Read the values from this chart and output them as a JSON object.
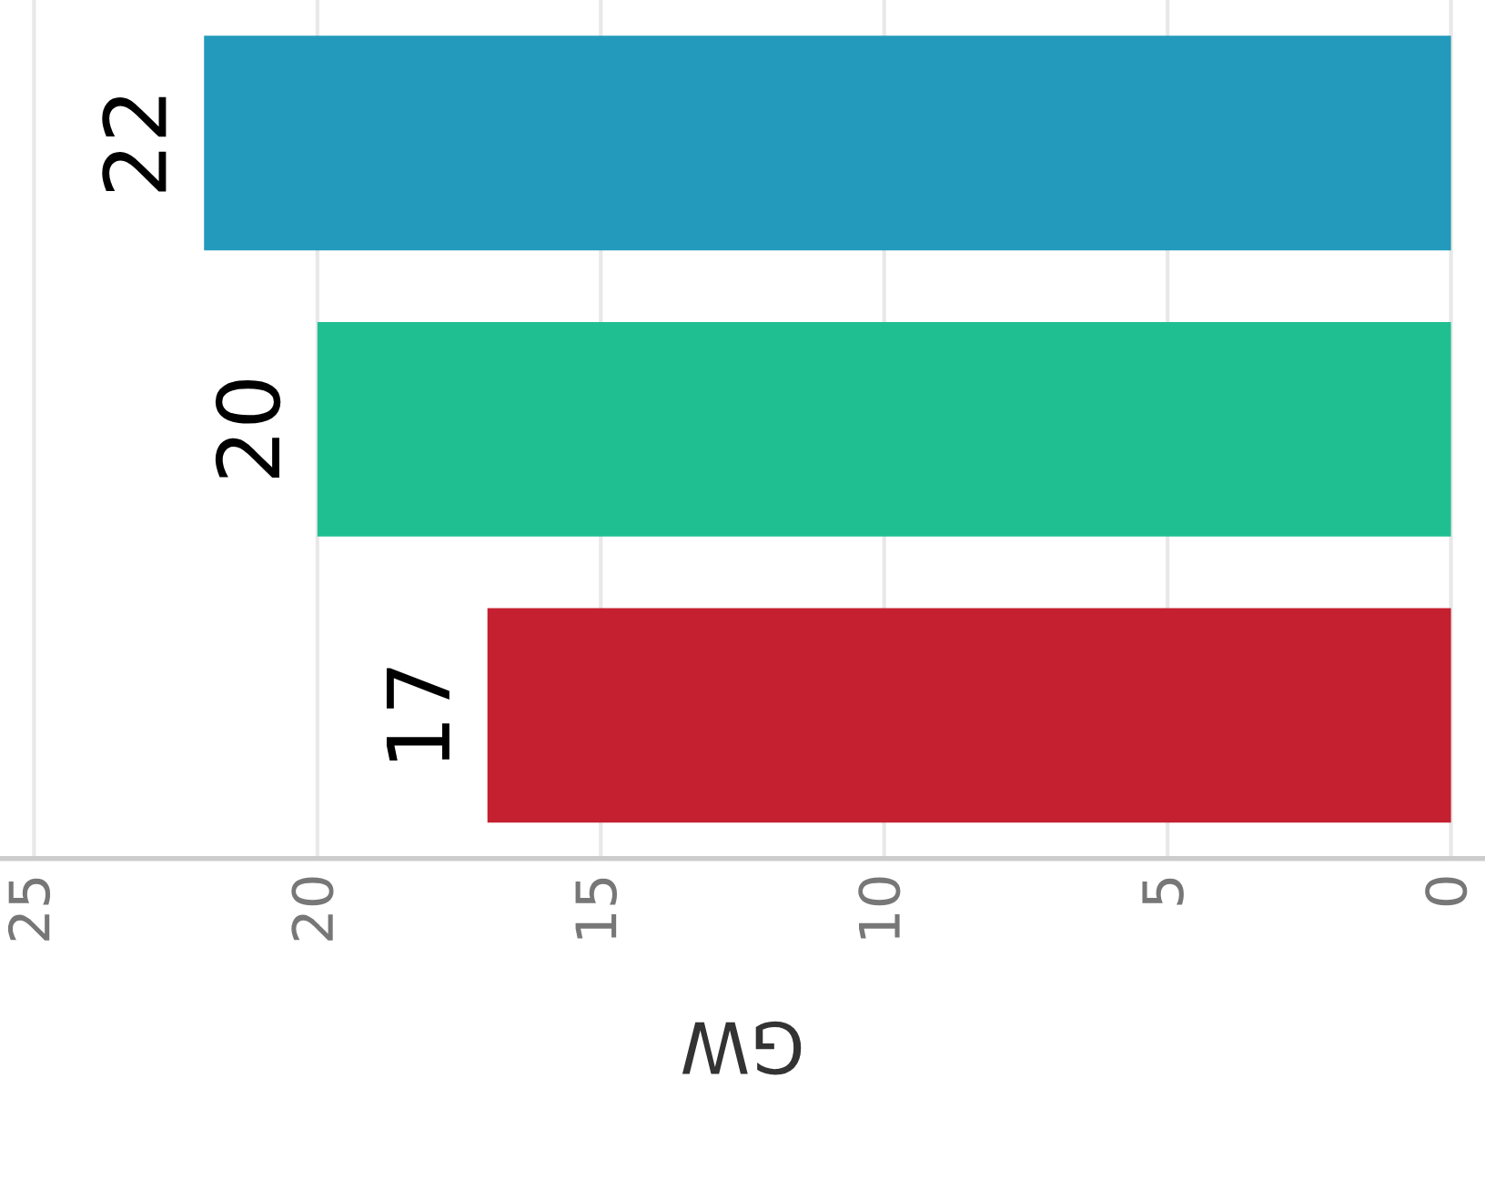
{
  "chart_data": {
    "type": "bar",
    "orientation": "horizontal",
    "categories": [
      null,
      null,
      null
    ],
    "values": [
      22,
      20,
      17
    ],
    "colors": [
      "#239abb",
      "#20bf92",
      "#c42030"
    ],
    "xlabel": "GW",
    "xlim": [
      25.6,
      -0.6
    ],
    "xticks": [
      25,
      20,
      15,
      10,
      5,
      0
    ],
    "grid": "x",
    "data_labels": true
  }
}
